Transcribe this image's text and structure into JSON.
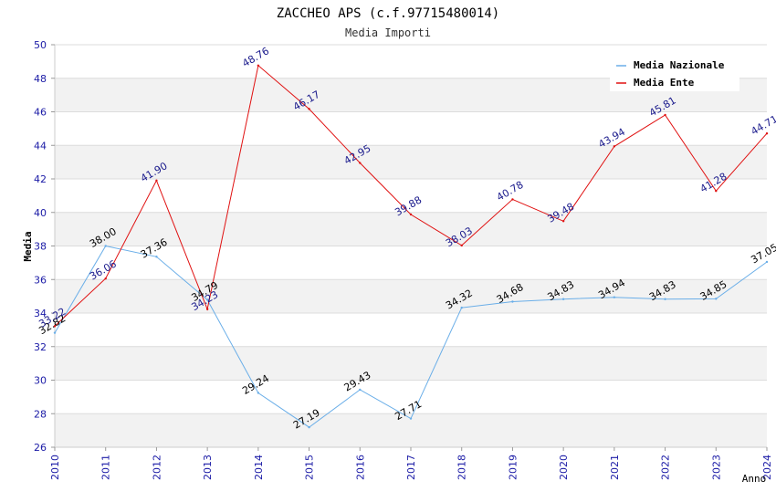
{
  "chart_data": {
    "type": "line",
    "title": "ZACCHEO APS (c.f.97715480014)",
    "subtitle": "Media Importi",
    "xlabel": "Anno",
    "ylabel": "Media",
    "ylim": [
      26,
      50
    ],
    "yticks": [
      "26",
      "28",
      "30",
      "32",
      "34",
      "36",
      "38",
      "40",
      "42",
      "44",
      "46",
      "48",
      "50"
    ],
    "categories": [
      "2010",
      "2011",
      "2012",
      "2013",
      "2014",
      "2015",
      "2016",
      "2017",
      "2018",
      "2019",
      "2020",
      "2021",
      "2022",
      "2023",
      "2024"
    ],
    "legend_position": "top-right",
    "series": [
      {
        "name": "Media Nazionale",
        "color": "#6aaee8",
        "label_color": "#000000",
        "values": [
          32.82,
          38.0,
          37.36,
          34.79,
          29.24,
          27.19,
          29.43,
          27.71,
          34.32,
          34.68,
          34.83,
          34.94,
          34.83,
          34.85,
          37.05
        ],
        "labels": [
          "32.82",
          "38.00",
          "37.36",
          "34.79",
          "29.24",
          "27.19",
          "29.43",
          "27.71",
          "34.32",
          "34.68",
          "34.83",
          "34.94",
          "34.83",
          "34.85",
          "37.05"
        ]
      },
      {
        "name": "Media Ente",
        "color": "#e01010",
        "label_color": "#1a1a8c",
        "values": [
          33.22,
          36.06,
          41.9,
          34.23,
          48.76,
          46.17,
          42.95,
          39.88,
          38.03,
          40.78,
          39.48,
          43.94,
          45.81,
          41.28,
          44.71
        ],
        "labels": [
          "33.22",
          "36.06",
          "41.90",
          "34.23",
          "48.76",
          "46.17",
          "42.95",
          "39.88",
          "38.03",
          "40.78",
          "39.48",
          "43.94",
          "45.81",
          "41.28",
          "44.71"
        ]
      }
    ]
  }
}
